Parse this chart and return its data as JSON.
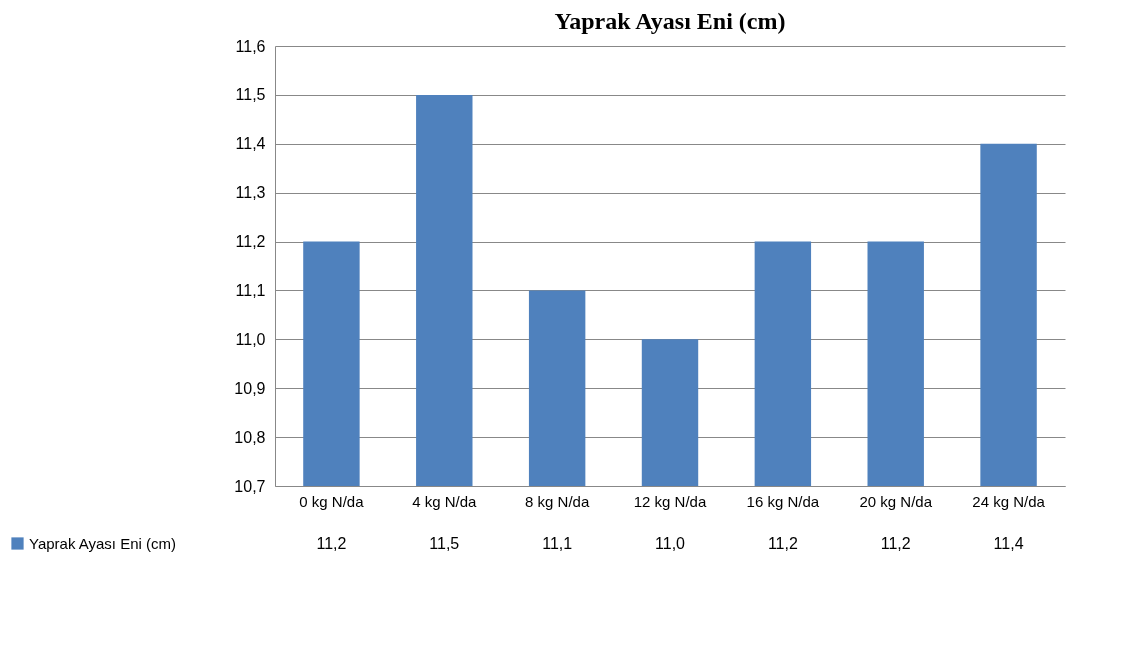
{
  "chart_data": {
    "type": "bar",
    "title": "Yaprak Ayası Eni (cm)",
    "categories": [
      "0 kg N/da",
      "4 kg N/da",
      "8 kg N/da",
      "12 kg N/da",
      "16 kg N/da",
      "20 kg N/da",
      "24 kg N/da"
    ],
    "series": [
      {
        "name": "Yaprak Ayası Eni (cm)",
        "color": "#4f81bd",
        "values": [
          11.2,
          11.5,
          11.1,
          11.0,
          11.2,
          11.2,
          11.4
        ],
        "value_labels": [
          "11,2",
          "11,5",
          "11,1",
          "11,0",
          "11,2",
          "11,2",
          "11,4"
        ]
      }
    ],
    "ylim": [
      10.7,
      11.6
    ],
    "yticks": [
      {
        "value": 10.7,
        "label": "10,7"
      },
      {
        "value": 10.8,
        "label": "10,8"
      },
      {
        "value": 10.9,
        "label": "10,9"
      },
      {
        "value": 11.0,
        "label": "11,0"
      },
      {
        "value": 11.1,
        "label": "11,1"
      },
      {
        "value": 11.2,
        "label": "11,2"
      },
      {
        "value": 11.3,
        "label": "11,3"
      },
      {
        "value": 11.4,
        "label": "11,4"
      },
      {
        "value": 11.5,
        "label": "11,5"
      },
      {
        "value": 11.6,
        "label": "11,6"
      }
    ],
    "grid": "y",
    "legend": "bottom left"
  }
}
